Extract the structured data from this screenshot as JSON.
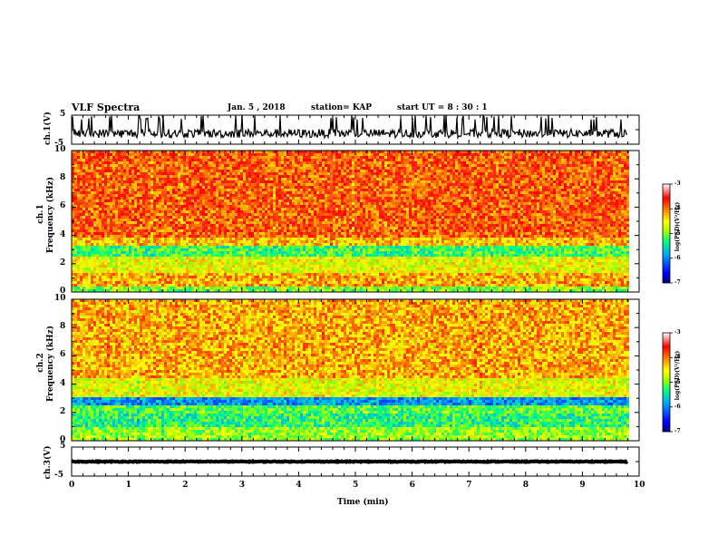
{
  "header": {
    "title": "VLF Spectra",
    "date": "Jan. 5 , 2018",
    "station": "station= KAP",
    "start": "start UT = 8 : 30 : 1"
  },
  "chart_data": [
    {
      "type": "line",
      "name": "ch1-waveform",
      "ylabel": "ch.1(V)",
      "ylim": [
        -5,
        5
      ],
      "yticks": [
        5,
        -5
      ],
      "xlim": [
        0,
        10
      ],
      "x_end": 9.8,
      "baseline": -1.3,
      "amplitude": 1.5,
      "spikes_to_top": true
    },
    {
      "type": "heatmap",
      "name": "ch1-spectrogram",
      "ylabel": "ch.1",
      "ylabel2": "Frequency (kHz)",
      "ylim": [
        0,
        10
      ],
      "yticks": [
        0,
        2,
        4,
        6,
        8,
        10
      ],
      "xlim": [
        0,
        10
      ],
      "x_end": 9.8,
      "bands_kHz": [
        {
          "from": 0.0,
          "to": 0.5,
          "level": -5.0
        },
        {
          "from": 0.5,
          "to": 1.4,
          "level": -4.2
        },
        {
          "from": 1.4,
          "to": 2.6,
          "level": -4.6
        },
        {
          "from": 2.6,
          "to": 3.3,
          "level": -5.2
        },
        {
          "from": 3.3,
          "to": 4.0,
          "level": -4.3
        },
        {
          "from": 4.0,
          "to": 10.0,
          "level": -3.9
        }
      ],
      "colorbar": {
        "label": "log(PSD)(V²/Hz)",
        "range": [
          -7,
          -3
        ],
        "ticks": [
          -3,
          -4,
          -5,
          -6,
          -7
        ]
      }
    },
    {
      "type": "heatmap",
      "name": "ch2-spectrogram",
      "ylabel": "ch.2",
      "ylabel2": "Frequency (kHz)",
      "ylim": [
        0,
        10
      ],
      "yticks": [
        0,
        2,
        4,
        6,
        8,
        10
      ],
      "xlim": [
        0,
        10
      ],
      "x_end": 9.8,
      "bands_kHz": [
        {
          "from": 0.0,
          "to": 1.0,
          "level": -4.9
        },
        {
          "from": 1.0,
          "to": 2.0,
          "level": -5.3
        },
        {
          "from": 2.0,
          "to": 2.6,
          "level": -5.1
        },
        {
          "from": 2.6,
          "to": 3.2,
          "level": -5.9
        },
        {
          "from": 3.2,
          "to": 4.5,
          "level": -4.6
        },
        {
          "from": 4.5,
          "to": 10.0,
          "level": -4.2
        }
      ],
      "colorbar": {
        "label": "log(PSD)(V²/Hz)",
        "range": [
          -7,
          -3
        ],
        "ticks": [
          -3,
          -4,
          -5,
          -6,
          -7
        ]
      }
    },
    {
      "type": "line",
      "name": "ch3-waveform",
      "ylabel": "ch.3(V)",
      "ylim": [
        -5,
        5
      ],
      "yticks": [
        5,
        -5
      ],
      "xlim": [
        0,
        10
      ],
      "x_end": 9.8,
      "baseline": 0.0,
      "amplitude": 0.15
    }
  ],
  "xaxis": {
    "label": "Time (min)",
    "ticks": [
      0,
      1,
      2,
      3,
      4,
      5,
      6,
      7,
      8,
      9,
      10
    ]
  },
  "colors": {
    "colormap": [
      "#000080",
      "#0000ff",
      "#00a0ff",
      "#00ff80",
      "#a0ff00",
      "#ffff00",
      "#ff8000",
      "#ff0000",
      "#ffffff"
    ]
  }
}
